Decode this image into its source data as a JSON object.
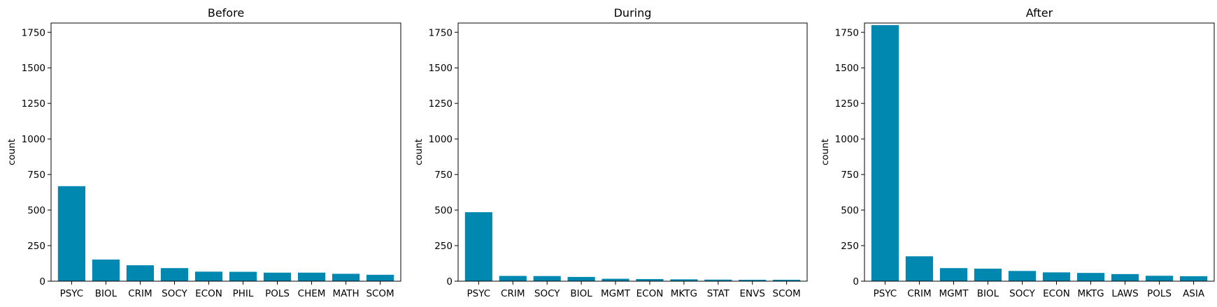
{
  "bar_color": "#0088b0",
  "chart_data": [
    {
      "type": "bar",
      "title": "Before",
      "xlabel": "",
      "ylabel": "count",
      "ylim": [
        0,
        1815
      ],
      "yticks": [
        0,
        250,
        500,
        750,
        1000,
        1250,
        1500,
        1750
      ],
      "categories": [
        "PSYC",
        "BIOL",
        "CRIM",
        "SOCY",
        "ECON",
        "PHIL",
        "POLS",
        "CHEM",
        "MATH",
        "SCOM"
      ],
      "values": [
        668,
        152,
        112,
        92,
        67,
        66,
        60,
        60,
        52,
        45
      ]
    },
    {
      "type": "bar",
      "title": "During",
      "xlabel": "",
      "ylabel": "count",
      "ylim": [
        0,
        1815
      ],
      "yticks": [
        0,
        250,
        500,
        750,
        1000,
        1250,
        1500,
        1750
      ],
      "categories": [
        "PSYC",
        "CRIM",
        "SOCY",
        "BIOL",
        "MGMT",
        "ECON",
        "MKTG",
        "STAT",
        "ENVS",
        "SCOM"
      ],
      "values": [
        485,
        37,
        36,
        30,
        17,
        15,
        13,
        11,
        10,
        10
      ]
    },
    {
      "type": "bar",
      "title": "After",
      "xlabel": "",
      "ylabel": "count",
      "ylim": [
        0,
        1815
      ],
      "yticks": [
        0,
        250,
        500,
        750,
        1000,
        1250,
        1500,
        1750
      ],
      "categories": [
        "PSYC",
        "CRIM",
        "MGMT",
        "BIOL",
        "SOCY",
        "ECON",
        "MKTG",
        "LAWS",
        "POLS",
        "ASIA"
      ],
      "values": [
        1800,
        175,
        92,
        88,
        72,
        62,
        58,
        50,
        38,
        35
      ]
    }
  ]
}
